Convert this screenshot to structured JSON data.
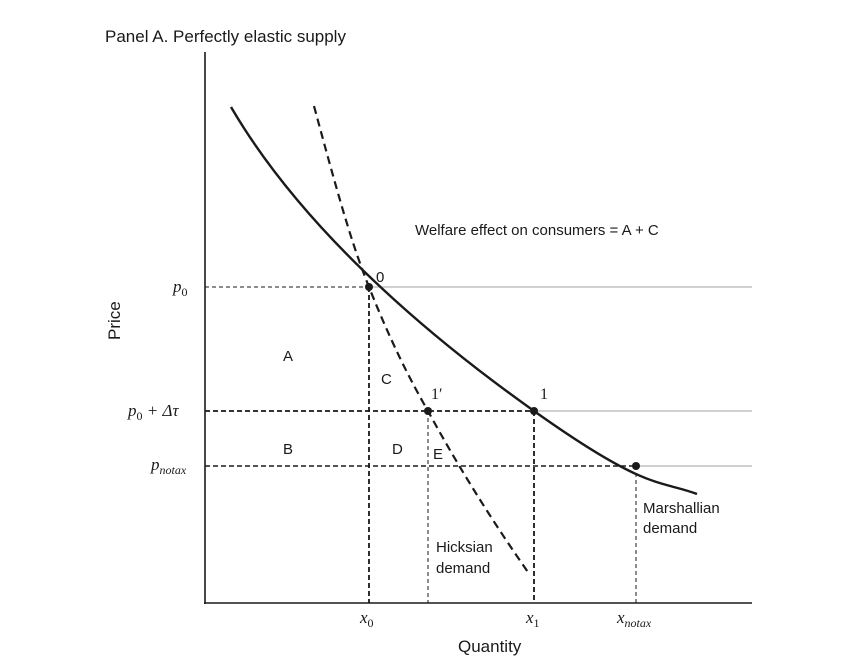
{
  "panel_title": "Panel A. Perfectly elastic supply",
  "welfare_note": "Welfare effect on consumers = A + C",
  "axes": {
    "x_label": "Quantity",
    "y_label": "Price"
  },
  "price_ticks": {
    "p0": {
      "base": "p",
      "sub": "0"
    },
    "p_tax": {
      "text": "p",
      "sub": "0",
      "tail": " + Δτ"
    },
    "p_notax": {
      "base": "p",
      "sub": "notax"
    }
  },
  "quantity_ticks": {
    "x0": {
      "base": "x",
      "sub": "0"
    },
    "x1": {
      "base": "x",
      "sub": "1"
    },
    "x_notax": {
      "base": "x",
      "sub": "notax"
    }
  },
  "points": {
    "point_0": "0",
    "point_1prime": "1′",
    "point_1": "1"
  },
  "regions": {
    "A": "A",
    "B": "B",
    "C": "C",
    "D": "D",
    "E": "E"
  },
  "curves": {
    "marshallian_line1": "Marshallian",
    "marshallian_line2": "demand",
    "hicksian_line1": "Hicksian",
    "hicksian_line2": "demand"
  },
  "colors": {
    "ink": "#1a1a1a",
    "price_line": "#b4b4b4"
  }
}
